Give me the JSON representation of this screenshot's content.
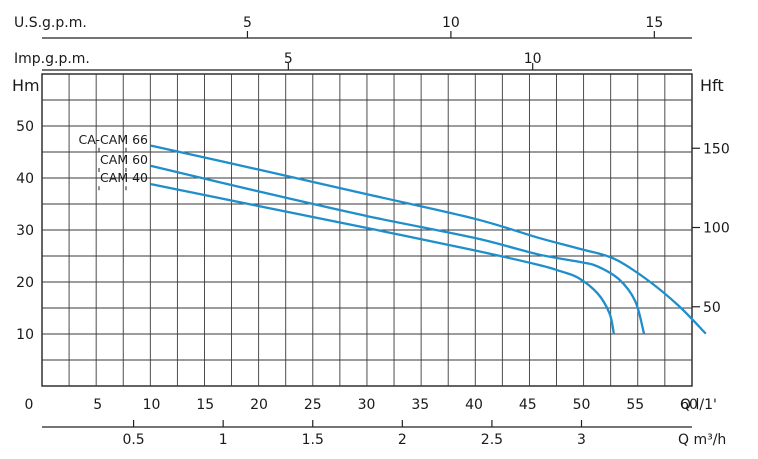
{
  "chart_data": {
    "type": "line",
    "x": {
      "label": "Q l/1'",
      "range": [
        0,
        62
      ],
      "ticks": [
        0,
        5,
        10,
        15,
        20,
        25,
        30,
        35,
        40,
        45,
        50,
        55,
        60
      ]
    },
    "y": {
      "label": "Hm",
      "range": [
        0,
        58
      ],
      "ticks": [
        10,
        20,
        30,
        40,
        50
      ]
    },
    "secondary_axes": {
      "usgpm": {
        "label": "U.S.g.p.m.",
        "ticks": [
          5,
          10,
          15
        ]
      },
      "impgpm": {
        "label": "Imp.g.p.m.",
        "ticks": [
          5,
          10
        ]
      },
      "m3h": {
        "label": "Q m³/h",
        "ticks": [
          "0.5",
          "1",
          "1.5",
          "2",
          "2.5",
          "3"
        ]
      },
      "hft": {
        "label": "Hft",
        "ticks": [
          50,
          100,
          150
        ]
      }
    },
    "grid": true,
    "series_color": "#1f8fcc",
    "series": [
      {
        "name": "CA-CAM 66",
        "points": [
          [
            10,
            46.2
          ],
          [
            20,
            41.6
          ],
          [
            30,
            36.9
          ],
          [
            40,
            32.2
          ],
          [
            46,
            28.5
          ],
          [
            50,
            26.3
          ],
          [
            53,
            24.5
          ],
          [
            56,
            20.6
          ],
          [
            59,
            15.5
          ],
          [
            61.5,
            10.2
          ]
        ]
      },
      {
        "name": "CAM 60",
        "points": [
          [
            10,
            42.3
          ],
          [
            20,
            37.4
          ],
          [
            30,
            32.7
          ],
          [
            40,
            28.5
          ],
          [
            46,
            25.3
          ],
          [
            50,
            23.8
          ],
          [
            51.5,
            23
          ],
          [
            53.5,
            20.5
          ],
          [
            55,
            16.3
          ],
          [
            55.8,
            10.2
          ]
        ]
      },
      {
        "name": "CAM 40",
        "points": [
          [
            10,
            38.8
          ],
          [
            20,
            34.6
          ],
          [
            30,
            30.4
          ],
          [
            40,
            26.1
          ],
          [
            46,
            23.3
          ],
          [
            48,
            22.1
          ],
          [
            49.7,
            20.8
          ],
          [
            51.5,
            17.8
          ],
          [
            52.6,
            14
          ],
          [
            53,
            10.2
          ]
        ]
      }
    ]
  }
}
